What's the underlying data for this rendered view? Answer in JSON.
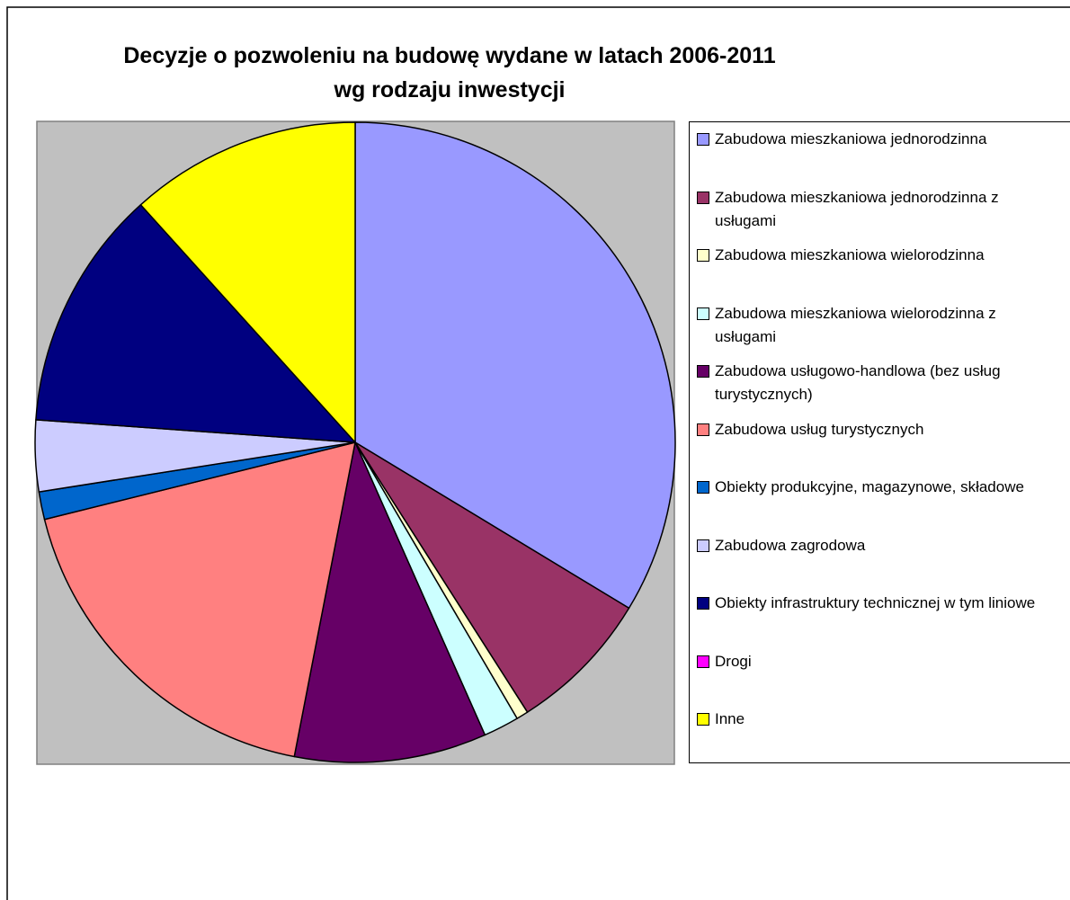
{
  "chart_data": {
    "type": "pie",
    "title": "Decyzje o pozwoleniu na budowę wydane w latach 2006-2011",
    "subtitle": "wg rodzaju inwestycji",
    "categories": [
      "Zabudowa mieszkaniowa jednorodzinna",
      "Zabudowa mieszkaniowa jednorodzinna z usługami",
      "Zabudowa mieszkaniowa wielorodzinna",
      "Zabudowa mieszkaniowa wielorodzinna z usługami",
      "Zabudowa usługowo-handlowa (bez usług turystycznych)",
      "Zabudowa usług turystycznych",
      "Obiekty produkcyjne, magazynowe, składowe",
      "Zabudowa zagrodowa",
      "Obiekty infrastruktury technicznej w tym liniowe",
      "Drogi",
      "Inne"
    ],
    "values": [
      33.7,
      7.3,
      0.6,
      1.8,
      9.7,
      18.1,
      1.4,
      3.6,
      12.2,
      0,
      11.7
    ],
    "colors": [
      "#9999ff",
      "#993366",
      "#ffffcc",
      "#ccffff",
      "#660066",
      "#ff8080",
      "#0066cc",
      "#ccccff",
      "#000080",
      "#ff00ff",
      "#ffff00"
    ],
    "legend": "right"
  }
}
